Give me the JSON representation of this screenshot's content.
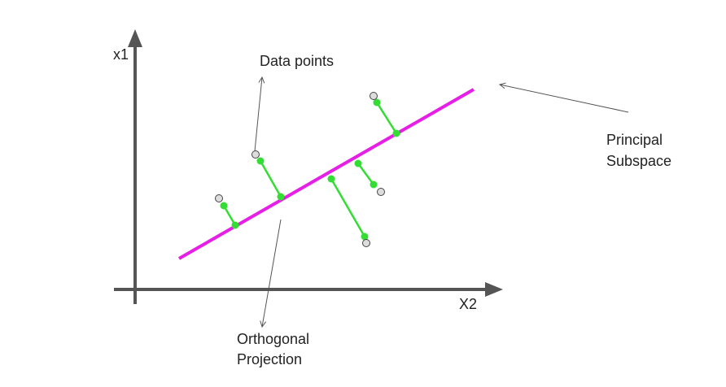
{
  "labels": {
    "y_axis": "x1",
    "x_axis": "X2",
    "data_points": "Data points",
    "principal_line1": "Principal",
    "principal_line2": "Subspace",
    "orthogonal_line1": "Orthogonal",
    "orthogonal_line2": "Projection"
  },
  "colors": {
    "axis": "#555555",
    "principal_line": "#e61ee6",
    "projection": "#33dd33",
    "data_point_fill": "#dddddd",
    "annotation_arrow": "#555555"
  }
}
